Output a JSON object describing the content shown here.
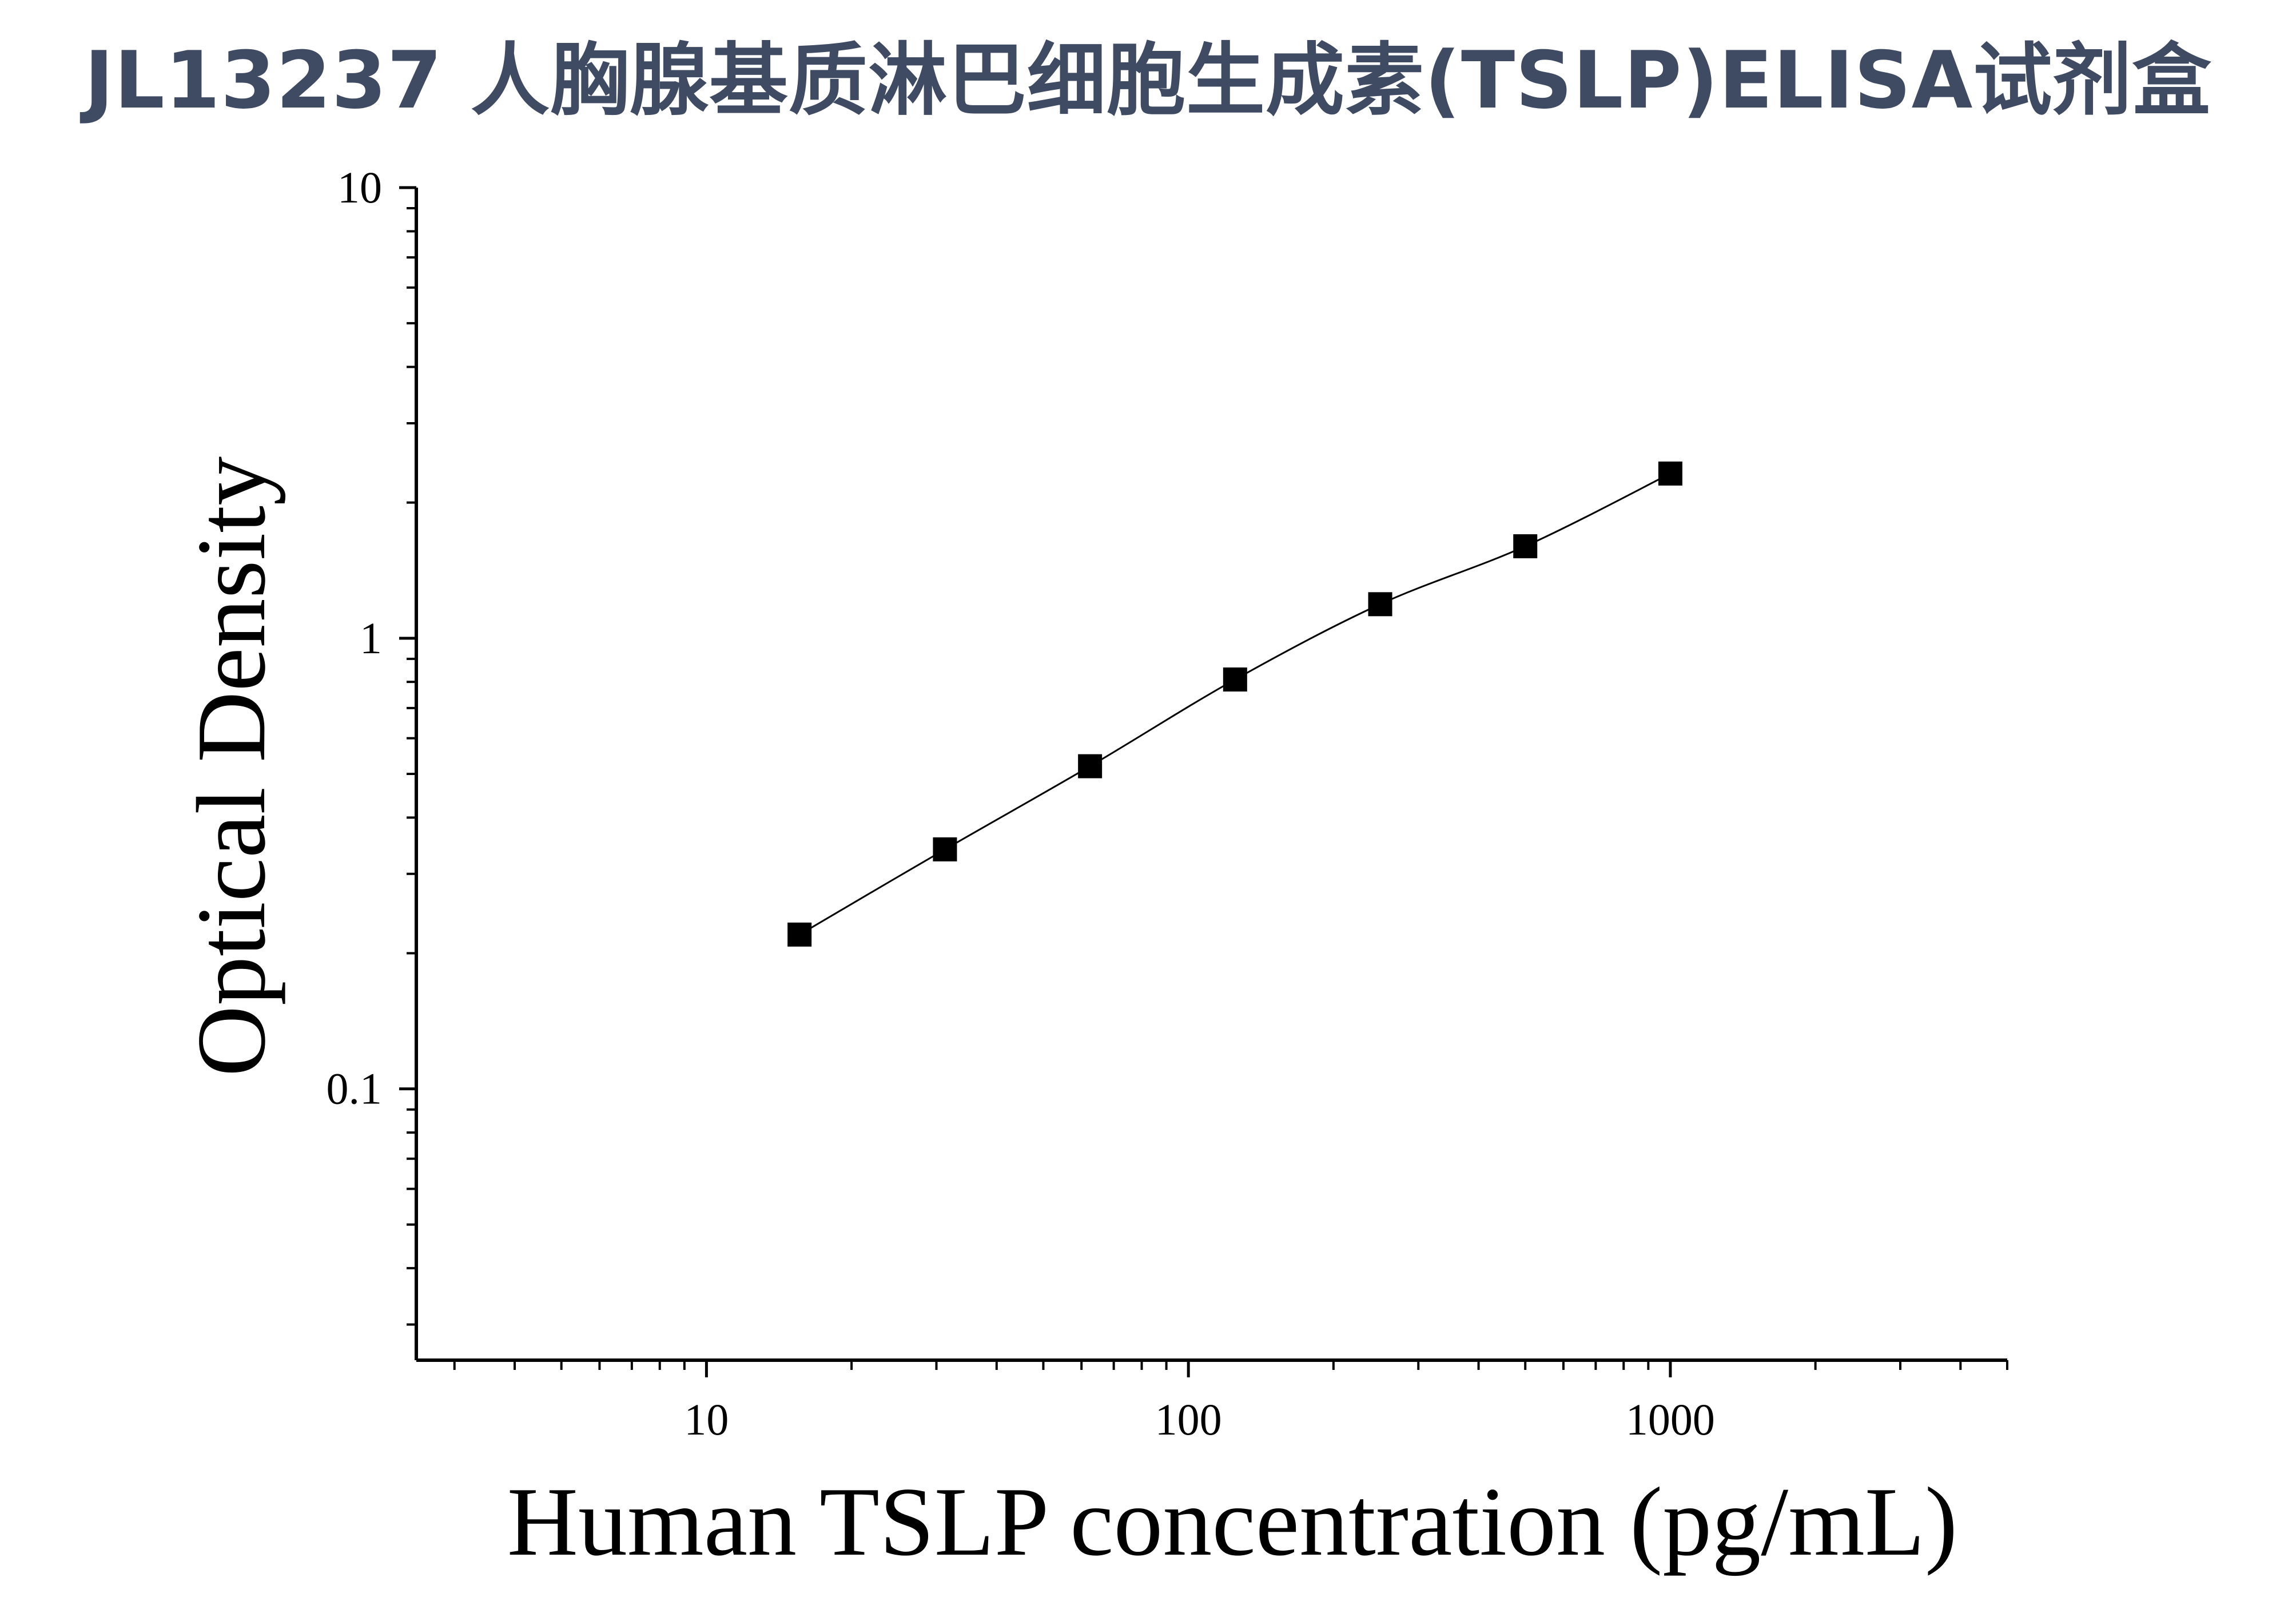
{
  "chart_data": {
    "type": "scatter",
    "title": "JL13237 人胸腺基质淋巴细胞生成素(TSLP)ELISA试剂盒",
    "xlabel": "Human TSLP concentration (pg/mL)",
    "ylabel": "Optical Density",
    "xscale": "log",
    "yscale": "log",
    "xlim": [
      2.5,
      5000
    ],
    "ylim": [
      0.025,
      10
    ],
    "x_tick_labels": [
      "10",
      "100",
      "1000"
    ],
    "y_tick_labels": [
      "0.1",
      "1",
      "10"
    ],
    "grid": false,
    "legend": "none",
    "fit_curve": true,
    "marker": "square",
    "colors": {
      "title": "#3f4a63",
      "marks": "#000000"
    },
    "series": [
      {
        "x": [
          15.6,
          31.25,
          62.5,
          125,
          250,
          500,
          1000
        ],
        "y": [
          0.22,
          0.34,
          0.52,
          0.81,
          1.19,
          1.6,
          2.32
        ]
      }
    ]
  }
}
